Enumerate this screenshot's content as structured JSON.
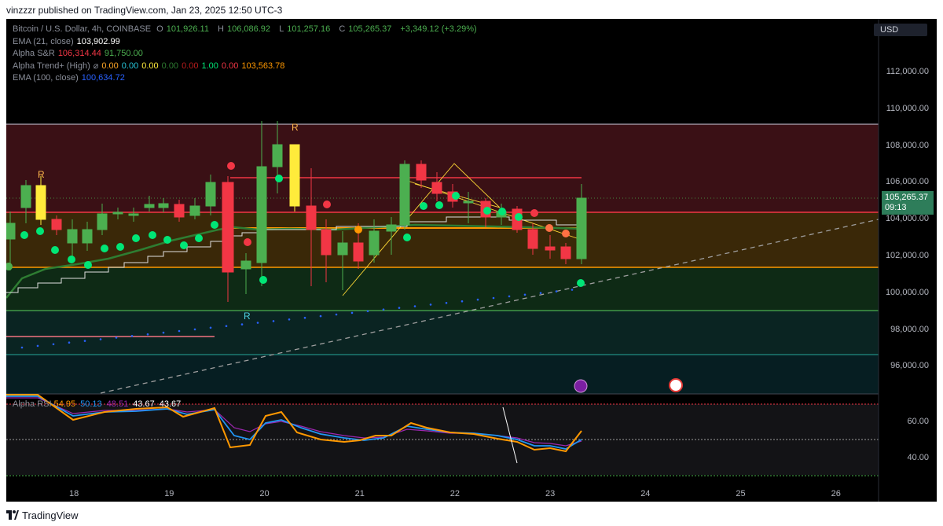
{
  "header": {
    "published_text": "vinzzzr published on TradingView.com, Jan 23, 2025 12:50 UTC-3"
  },
  "legend": {
    "symbol": "Bitcoin / U.S. Dollar, 4h, COINBASE",
    "ohlc": {
      "o_label": "O",
      "o": "101,926.11",
      "h_label": "H",
      "h": "106,086.92",
      "l_label": "L",
      "l": "101,257.16",
      "c_label": "C",
      "c": "105,265.37",
      "change": "+3,349.12 (+3.29%)"
    },
    "indicators": [
      {
        "name": "EMA (21, close)",
        "values": [
          "103,902.99"
        ],
        "colors": [
          "#ffffff"
        ]
      },
      {
        "name": "Alpha S&R",
        "values": [
          "106,314.44",
          "91,750.00"
        ],
        "colors": [
          "#f23645",
          "#4caf50"
        ]
      },
      {
        "name": "Alpha Trend+ (High)",
        "values": [
          "⌀",
          "0.00",
          "0.00",
          "0.00",
          "0.00",
          "0.00",
          "1.00",
          "0.00",
          "103,563.78"
        ],
        "colors": [
          "#8a8e99",
          "#ffa726",
          "#26c6da",
          "#ffeb3b",
          "#2e7d32",
          "#b71c1c",
          "#00e676",
          "#f23645",
          "#ff9800"
        ]
      },
      {
        "name": "EMA (100, close)",
        "values": [
          "100,634.72"
        ],
        "colors": [
          "#2962ff"
        ]
      }
    ]
  },
  "currency_button": "USD",
  "price_tag": {
    "price": "105,265.37",
    "countdown": "09:13",
    "color": "#2e7d5a"
  },
  "y_axis": [
    "112,000.00",
    "110,000.00",
    "108,000.00",
    "106,000.00",
    "104,000.00",
    "102,000.00",
    "100,000.00",
    "98,000.00",
    "96,000.00"
  ],
  "x_axis": [
    "18",
    "19",
    "20",
    "21",
    "22",
    "23",
    "24",
    "25",
    "26"
  ],
  "rsi": {
    "legend_values": [
      "54.95",
      "50.13",
      "48.51",
      "43.67",
      "43.67"
    ],
    "legend_colors": [
      "#ff9800",
      "#2196f3",
      "#9c27b0",
      "#ffffff",
      "#ffffff"
    ],
    "y_axis": [
      "60.00",
      "40.00"
    ]
  },
  "signals": {
    "resistance_label": "R",
    "support_label": "R"
  },
  "footer": {
    "brand": "TradingView"
  },
  "colors": {
    "up": "#4caf50",
    "down": "#f23645",
    "yellow": "#ffeb3b",
    "ema21": "#2e7d32",
    "accent": "#2962ff"
  }
}
